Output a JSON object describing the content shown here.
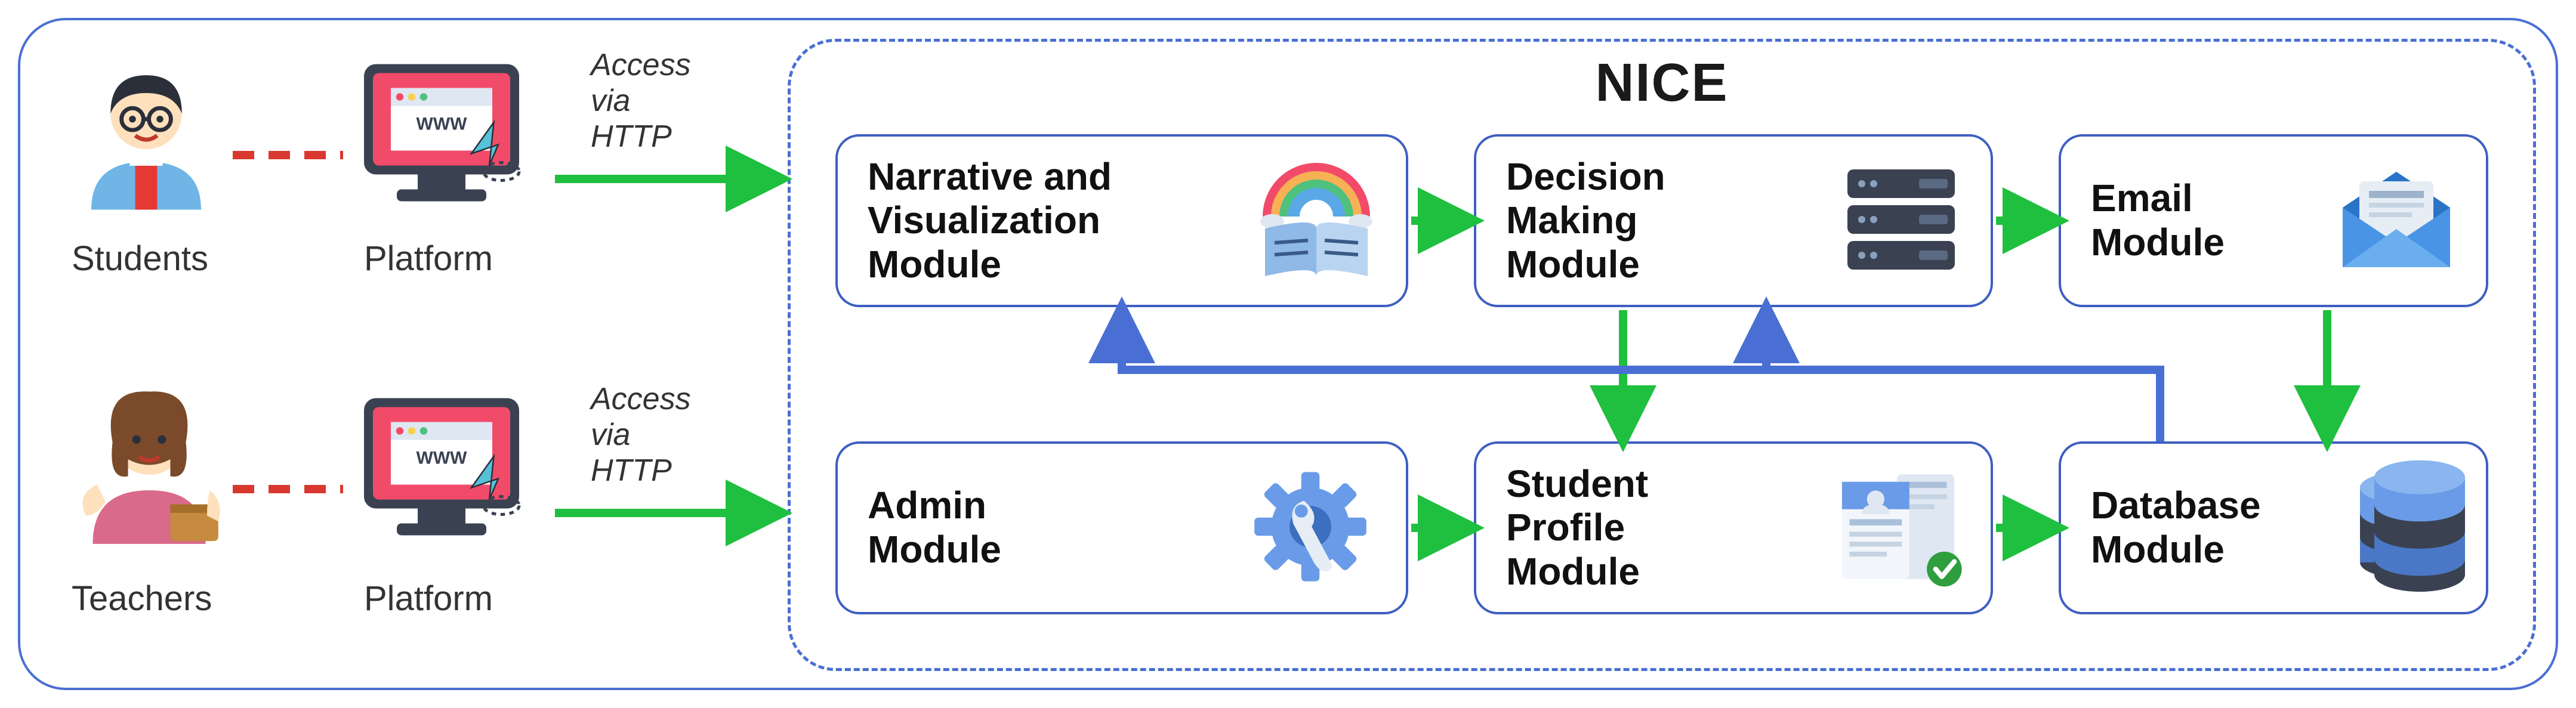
{
  "type": "flowchart",
  "background_color": "#ffffff",
  "outer_border_color": "#4a6fd4",
  "nice": {
    "title": "NICE",
    "border_style": "dashed",
    "border_color": "#4a6fd4"
  },
  "actors": {
    "student": {
      "label": "Students"
    },
    "teacher": {
      "label": "Teachers"
    },
    "platform_label": "Platform",
    "access_label_line1": "Access",
    "access_label_line2": "via",
    "access_label_line3": "HTTP"
  },
  "modules": {
    "narrative": {
      "label": "Narrative and\nVisualization\nModule"
    },
    "decision": {
      "label": "Decision\nMaking\nModule"
    },
    "email": {
      "label": "Email\nModule"
    },
    "admin": {
      "label": "Admin\nModule"
    },
    "profile": {
      "label": "Student\nProfile\nModule"
    },
    "database": {
      "label": "Database\nModule"
    }
  },
  "colors": {
    "green_arrow": "#1fbf3f",
    "blue_arrow": "#4a6fd4",
    "red_dash": "#d8382f",
    "module_border": "#3d5fc0",
    "text": "#1a1a1a"
  },
  "edges": [
    {
      "from": "students",
      "to": "platform-top",
      "style": "red-dash"
    },
    {
      "from": "teachers",
      "to": "platform-bot",
      "style": "red-dash"
    },
    {
      "from": "platform-top",
      "to": "nice",
      "style": "green"
    },
    {
      "from": "platform-bot",
      "to": "nice",
      "style": "green"
    },
    {
      "from": "narrative",
      "to": "decision",
      "style": "green"
    },
    {
      "from": "decision",
      "to": "email",
      "style": "green"
    },
    {
      "from": "decision",
      "to": "profile",
      "style": "green"
    },
    {
      "from": "admin",
      "to": "profile",
      "style": "green"
    },
    {
      "from": "profile",
      "to": "database",
      "style": "green"
    },
    {
      "from": "email",
      "to": "database",
      "style": "green"
    },
    {
      "from": "database",
      "to": "narrative",
      "style": "blue"
    },
    {
      "from": "database",
      "to": "decision",
      "style": "blue"
    }
  ],
  "line_widths": {
    "green": 12,
    "blue": 12,
    "red_dash": 12
  },
  "fonts": {
    "title": 90,
    "module": 64,
    "label": 58,
    "access": 52
  }
}
